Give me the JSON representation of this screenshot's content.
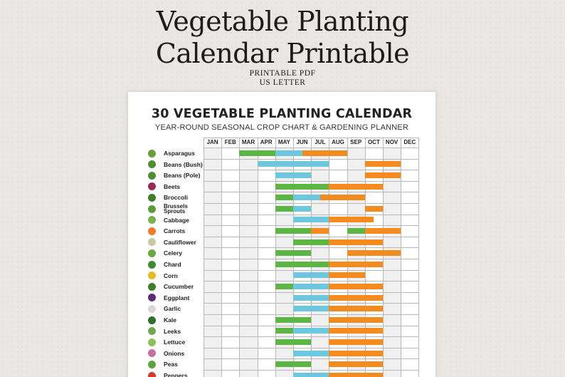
{
  "hero": {
    "title_line1": "Vegetable Planting",
    "title_line2": "Calendar Printable",
    "subtitle_line1": "PRINTABLE PDF",
    "subtitle_line2": "US LETTER"
  },
  "sheet": {
    "title": "30 VEGETABLE PLANTING CALENDAR",
    "subtitle": "YEAR-ROUND SEASONAL CROP CHART & GARDENING PLANNER"
  },
  "months": [
    "JAN",
    "FEB",
    "MAR",
    "APR",
    "MAY",
    "JUN",
    "JUL",
    "AUG",
    "SEP",
    "OCT",
    "NOV",
    "DEC"
  ],
  "colors": {
    "indoor": "#6cc7df",
    "sow": "#5cb544",
    "harvest": "#f38b1f",
    "shade": "#f0f0f0",
    "grid": "#b9b9b9"
  },
  "legend_note": "",
  "rows": [
    {
      "label": "Asparagus",
      "icon": "asparagus-icon",
      "icon_color": "#6b9e3a",
      "bars": [
        [
          "sow",
          2,
          4
        ],
        [
          "indoor",
          4,
          5.5
        ],
        [
          "harvest",
          5.5,
          8
        ]
      ]
    },
    {
      "label": "Beans (Bush)",
      "icon": "bean-icon",
      "icon_color": "#4d8f2e",
      "bars": [
        [
          "indoor",
          3,
          7
        ],
        [
          "harvest",
          9,
          11
        ]
      ]
    },
    {
      "label": "Beans (Pole)",
      "icon": "bean-icon",
      "icon_color": "#4d8f2e",
      "bars": [
        [
          "indoor",
          4,
          6
        ],
        [
          "harvest",
          9,
          11
        ]
      ]
    },
    {
      "label": "Beets",
      "icon": "beet-icon",
      "icon_color": "#9b2a5a",
      "bars": [
        [
          "sow",
          4,
          7
        ],
        [
          "harvest",
          7,
          10
        ]
      ]
    },
    {
      "label": "Broccoli",
      "icon": "broccoli-icon",
      "icon_color": "#3f7d2b",
      "bars": [
        [
          "sow",
          4,
          5
        ],
        [
          "indoor",
          5,
          6.5
        ],
        [
          "harvest",
          6.5,
          9
        ]
      ]
    },
    {
      "label": "Brussels Sprouts",
      "icon": "sprout-icon",
      "icon_color": "#5e9b38",
      "bars": [
        [
          "sow",
          4,
          5
        ],
        [
          "indoor",
          5,
          6
        ],
        [
          "harvest",
          9,
          10
        ]
      ]
    },
    {
      "label": "Cabbage",
      "icon": "cabbage-icon",
      "icon_color": "#79b04c",
      "bars": [
        [
          "indoor",
          5,
          7
        ],
        [
          "harvest",
          7,
          9.5
        ]
      ]
    },
    {
      "label": "Carrots",
      "icon": "carrot-icon",
      "icon_color": "#f07b22",
      "bars": [
        [
          "sow",
          4,
          6
        ],
        [
          "harvest",
          6,
          7
        ],
        [
          "sow",
          8,
          9
        ],
        [
          "harvest",
          9,
          11
        ]
      ]
    },
    {
      "label": "Cauliflower",
      "icon": "cauliflower-icon",
      "icon_color": "#c9c9a4",
      "bars": [
        [
          "sow",
          5,
          7
        ],
        [
          "harvest",
          7,
          10
        ]
      ]
    },
    {
      "label": "Celery",
      "icon": "celery-icon",
      "icon_color": "#6aa840",
      "bars": [
        [
          "sow",
          4,
          6
        ],
        [
          "harvest",
          8,
          11
        ]
      ]
    },
    {
      "label": "Chard",
      "icon": "chard-icon",
      "icon_color": "#3d8a33",
      "bars": [
        [
          "sow",
          4,
          7
        ],
        [
          "harvest",
          7,
          10
        ]
      ]
    },
    {
      "label": "Corn",
      "icon": "corn-icon",
      "icon_color": "#e7b923",
      "bars": [
        [
          "indoor",
          5,
          7
        ],
        [
          "harvest",
          7,
          9
        ]
      ]
    },
    {
      "label": "Cucumber",
      "icon": "cucumber-icon",
      "icon_color": "#3e7f2b",
      "bars": [
        [
          "sow",
          4,
          5
        ],
        [
          "indoor",
          5,
          7
        ],
        [
          "harvest",
          7,
          10
        ]
      ]
    },
    {
      "label": "Eggplant",
      "icon": "eggplant-icon",
      "icon_color": "#5a2d7a",
      "bars": [
        [
          "indoor",
          5,
          7
        ],
        [
          "harvest",
          7,
          10
        ]
      ]
    },
    {
      "label": "Garlic",
      "icon": "garlic-icon",
      "icon_color": "#ddd6d8",
      "bars": [
        [
          "indoor",
          5,
          7
        ],
        [
          "harvest",
          7,
          10
        ]
      ]
    },
    {
      "label": "Kale",
      "icon": "kale-icon",
      "icon_color": "#2f6e2d",
      "bars": [
        [
          "sow",
          4,
          6
        ],
        [
          "harvest",
          7,
          10
        ]
      ]
    },
    {
      "label": "Leeks",
      "icon": "leek-icon",
      "icon_color": "#6fa94a",
      "bars": [
        [
          "sow",
          4,
          5
        ],
        [
          "indoor",
          5,
          7
        ],
        [
          "harvest",
          7,
          10
        ]
      ]
    },
    {
      "label": "Lettuce",
      "icon": "lettuce-icon",
      "icon_color": "#8cc156",
      "bars": [
        [
          "sow",
          4,
          6
        ],
        [
          "harvest",
          7,
          10
        ]
      ]
    },
    {
      "label": "Onions",
      "icon": "onion-icon",
      "icon_color": "#c86da0",
      "bars": [
        [
          "indoor",
          5,
          7
        ],
        [
          "harvest",
          7,
          10
        ]
      ]
    },
    {
      "label": "Peas",
      "icon": "pea-icon",
      "icon_color": "#5aa33e",
      "bars": [
        [
          "sow",
          4,
          6
        ],
        [
          "harvest",
          7,
          10
        ]
      ]
    },
    {
      "label": "Peppers",
      "icon": "pepper-icon",
      "icon_color": "#d43a2b",
      "bars": [
        [
          "indoor",
          5,
          7
        ],
        [
          "harvest",
          7,
          10
        ]
      ]
    }
  ]
}
